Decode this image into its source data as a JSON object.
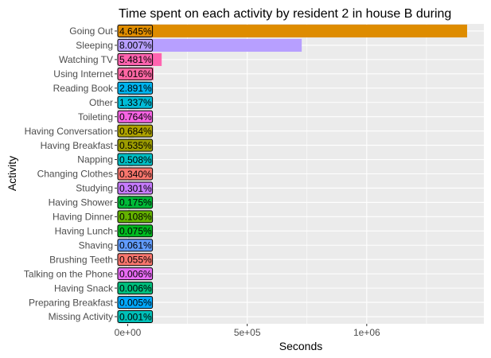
{
  "chart_data": {
    "type": "bar",
    "orientation": "horizontal",
    "title": "Time spent on each activity by resident 2 in house B during",
    "xlabel": "Seconds",
    "ylabel": "Activity",
    "xlim": [
      -45000,
      1490000
    ],
    "x_ticks": [
      0,
      500000,
      1000000
    ],
    "x_tick_labels": [
      "0e+00",
      "5e+05",
      "1e+06"
    ],
    "grid": true,
    "legend": "none",
    "categories": [
      "Going Out",
      "Sleeping",
      "Watching TV",
      "Using Internet",
      "Reading Book",
      "Other",
      "Toileting",
      "Having Conversation",
      "Having Breakfast",
      "Napping",
      "Changing Clothes",
      "Studying",
      "Having Shower",
      "Having Dinner",
      "Having Lunch",
      "Shaving",
      "Brushing Teeth",
      "Talking on the Phone",
      "Having Snack",
      "Preparing Breakfast",
      "Missing Activity"
    ],
    "values": [
      1420000,
      728000,
      142000,
      108000,
      83000,
      46000,
      30000,
      26000,
      22000,
      21000,
      17000,
      16000,
      12000,
      10000,
      9000,
      8000,
      8000,
      6000,
      6000,
      6000,
      5000
    ],
    "data_labels": [
      "4.645%",
      "8.007%",
      "5.481%",
      "4.016%",
      "2.891%",
      "1.337%",
      "0.764%",
      "0.684%",
      "0.535%",
      "0.508%",
      "0.340%",
      "0.301%",
      "0.175%",
      "0.108%",
      "0.075%",
      "0.061%",
      "0.055%",
      "0.006%",
      "0.006%",
      "0.005%",
      "0.001%"
    ],
    "colors": [
      "#DE8C00",
      "#B79FFF",
      "#FF64B0",
      "#FF67A4",
      "#00B4EF",
      "#00BCD8",
      "#F564E3",
      "#AEA200",
      "#9C9C00",
      "#00BEC4",
      "#F8766D",
      "#C77CFF",
      "#00BA38",
      "#64B200",
      "#00B81F",
      "#619CFF",
      "#F8766D",
      "#E76BF3",
      "#00BF7D",
      "#00A9FF",
      "#00C0B8"
    ],
    "panel_background": "#EBEBEB",
    "grid_color": "#FFFFFF"
  }
}
